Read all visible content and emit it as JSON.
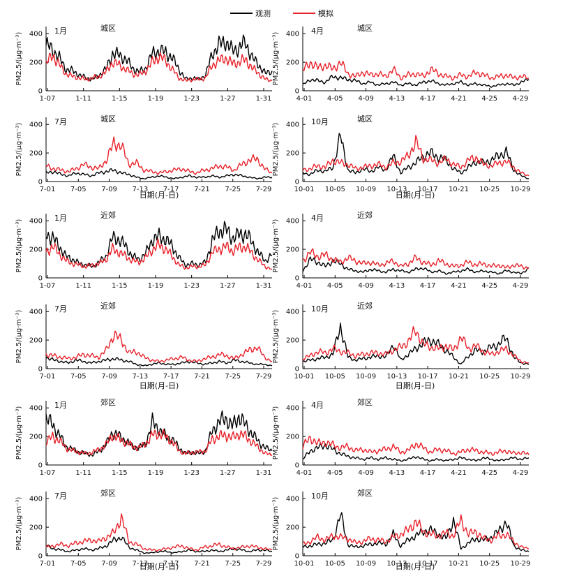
{
  "legend": {
    "observed": "观测",
    "simulated": "模拟",
    "observed_color": "#000000",
    "simulated_color": "#e8212a"
  },
  "y_axis_label": "PM2.5/(μg·m⁻³)",
  "x_axis_label": "日期(月-日)",
  "chart_data": [
    {
      "type": "line",
      "month": "1月",
      "region": "城区",
      "ylim": [
        0,
        450
      ],
      "yticks": [
        0,
        200,
        400
      ],
      "xticks": [
        "1-07",
        "1-11",
        "1-15",
        "1-19",
        "1-23",
        "1-27",
        "1-31"
      ],
      "series": [
        {
          "name": "观测",
          "values": [
            320,
            290,
            230,
            150,
            140,
            110,
            90,
            80,
            110,
            150,
            260,
            250,
            220,
            160,
            130,
            160,
            260,
            280,
            270,
            230,
            150,
            80,
            90,
            80,
            110,
            260,
            320,
            350,
            280,
            300,
            340,
            230,
            180,
            120,
            140
          ]
        },
        {
          "name": "模拟",
          "values": [
            190,
            250,
            180,
            120,
            100,
            90,
            80,
            90,
            100,
            130,
            200,
            180,
            150,
            120,
            110,
            140,
            200,
            240,
            210,
            150,
            90,
            70,
            80,
            80,
            90,
            180,
            210,
            230,
            190,
            200,
            220,
            160,
            120,
            80,
            70
          ]
        }
      ]
    },
    {
      "type": "line",
      "month": "4月",
      "region": "城区",
      "ylim": [
        0,
        450
      ],
      "yticks": [
        0,
        200,
        400
      ],
      "xticks": [
        "4-01",
        "4-05",
        "4-09",
        "4-13",
        "4-17",
        "4-21",
        "4-25",
        "4-29"
      ],
      "series": [
        {
          "name": "观测",
          "values": [
            40,
            80,
            70,
            60,
            100,
            90,
            80,
            70,
            50,
            60,
            40,
            50,
            60,
            40,
            50,
            40,
            60,
            70,
            50,
            40,
            50,
            60,
            40,
            50,
            40,
            30,
            40,
            50,
            40,
            60,
            80
          ]
        },
        {
          "name": "模拟",
          "values": [
            140,
            200,
            160,
            180,
            150,
            200,
            120,
            100,
            130,
            110,
            120,
            100,
            150,
            90,
            110,
            120,
            100,
            150,
            120,
            100,
            90,
            110,
            100,
            130,
            110,
            90,
            100,
            110,
            90,
            100,
            90
          ]
        }
      ]
    },
    {
      "type": "line",
      "month": "7月",
      "region": "城区",
      "ylim": [
        0,
        450
      ],
      "yticks": [
        0,
        200,
        400
      ],
      "xticks": [
        "7-01",
        "7-05",
        "7-09",
        "7-13",
        "7-17",
        "7-21",
        "7-25",
        "7-29"
      ],
      "series": [
        {
          "name": "观测",
          "values": [
            60,
            70,
            50,
            40,
            60,
            50,
            40,
            60,
            70,
            80,
            60,
            50,
            30,
            20,
            30,
            40,
            30,
            20,
            30,
            40,
            30,
            30,
            40,
            30,
            40,
            50,
            40,
            30,
            20,
            30,
            30
          ]
        },
        {
          "name": "模拟",
          "values": [
            110,
            90,
            80,
            70,
            90,
            120,
            100,
            90,
            150,
            270,
            250,
            120,
            130,
            80,
            70,
            60,
            70,
            80,
            90,
            70,
            60,
            80,
            90,
            110,
            100,
            80,
            120,
            150,
            160,
            90,
            60
          ]
        }
      ]
    },
    {
      "type": "line",
      "month": "10月",
      "region": "城区",
      "ylim": [
        0,
        450
      ],
      "yticks": [
        0,
        200,
        400
      ],
      "xticks": [
        "10-01",
        "10-05",
        "10-09",
        "10-13",
        "10-17",
        "10-21",
        "10-25",
        "10-29"
      ],
      "series": [
        {
          "name": "观测",
          "values": [
            60,
            50,
            80,
            70,
            100,
            320,
            80,
            60,
            90,
            70,
            100,
            80,
            180,
            60,
            100,
            130,
            180,
            200,
            170,
            150,
            90,
            60,
            100,
            140,
            130,
            150,
            180,
            210,
            80,
            40,
            20
          ]
        },
        {
          "name": "模拟",
          "values": [
            80,
            90,
            110,
            100,
            150,
            130,
            120,
            90,
            100,
            110,
            120,
            100,
            130,
            140,
            180,
            280,
            160,
            150,
            130,
            160,
            120,
            100,
            150,
            170,
            120,
            110,
            130,
            140,
            100,
            60,
            40
          ]
        }
      ]
    },
    {
      "type": "line",
      "month": "1月",
      "region": "近郊",
      "ylim": [
        0,
        450
      ],
      "yticks": [
        0,
        200,
        400
      ],
      "xticks": [
        "1-07",
        "1-11",
        "1-15",
        "1-19",
        "1-23",
        "1-27",
        "1-31"
      ],
      "series": [
        {
          "name": "观测",
          "values": [
            310,
            280,
            220,
            150,
            130,
            100,
            90,
            80,
            110,
            150,
            280,
            270,
            220,
            150,
            130,
            170,
            270,
            290,
            270,
            220,
            140,
            90,
            100,
            90,
            110,
            260,
            330,
            340,
            280,
            300,
            310,
            250,
            170,
            120,
            160
          ]
        },
        {
          "name": "模拟",
          "values": [
            180,
            220,
            170,
            120,
            100,
            90,
            80,
            90,
            100,
            130,
            200,
            180,
            150,
            120,
            110,
            140,
            200,
            230,
            200,
            150,
            90,
            70,
            80,
            80,
            90,
            180,
            200,
            220,
            190,
            210,
            220,
            170,
            120,
            80,
            60
          ]
        }
      ]
    },
    {
      "type": "line",
      "month": "4月",
      "region": "近郊",
      "ylim": [
        0,
        450
      ],
      "yticks": [
        0,
        200,
        400
      ],
      "xticks": [
        "4-01",
        "4-05",
        "4-09",
        "4-13",
        "4-17",
        "4-21",
        "4-25",
        "4-29"
      ],
      "series": [
        {
          "name": "观测",
          "values": [
            50,
            130,
            110,
            80,
            120,
            100,
            60,
            50,
            40,
            60,
            50,
            40,
            60,
            50,
            40,
            60,
            70,
            40,
            50,
            30,
            40,
            50,
            60,
            40,
            50,
            40,
            30,
            50,
            40,
            30,
            70
          ]
        },
        {
          "name": "模拟",
          "values": [
            120,
            180,
            150,
            160,
            130,
            110,
            140,
            120,
            100,
            110,
            90,
            100,
            120,
            80,
            100,
            140,
            110,
            90,
            120,
            100,
            80,
            90,
            110,
            90,
            100,
            80,
            90,
            70,
            90,
            80,
            70
          ]
        }
      ]
    },
    {
      "type": "line",
      "month": "7月",
      "region": "近郊",
      "ylim": [
        0,
        450
      ],
      "yticks": [
        0,
        200,
        400
      ],
      "xticks": [
        "7-01",
        "7-05",
        "7-09",
        "7-13",
        "7-17",
        "7-21",
        "7-25",
        "7-29"
      ],
      "series": [
        {
          "name": "观测",
          "values": [
            80,
            60,
            50,
            40,
            60,
            50,
            40,
            50,
            60,
            70,
            60,
            50,
            30,
            20,
            30,
            40,
            30,
            30,
            40,
            50,
            40,
            30,
            40,
            50,
            40,
            60,
            50,
            40,
            30,
            30,
            20
          ]
        },
        {
          "name": "模拟",
          "values": [
            100,
            90,
            80,
            70,
            80,
            100,
            90,
            80,
            130,
            240,
            200,
            110,
            120,
            80,
            60,
            50,
            60,
            70,
            80,
            60,
            50,
            70,
            80,
            100,
            90,
            70,
            100,
            130,
            150,
            80,
            50
          ]
        }
      ]
    },
    {
      "type": "line",
      "month": "10月",
      "region": "近郊",
      "ylim": [
        0,
        450
      ],
      "yticks": [
        0,
        200,
        400
      ],
      "xticks": [
        "10-01",
        "10-05",
        "10-09",
        "10-13",
        "10-17",
        "10-21",
        "10-25",
        "10-29"
      ],
      "series": [
        {
          "name": "观测",
          "values": [
            50,
            60,
            70,
            80,
            100,
            300,
            80,
            60,
            70,
            80,
            90,
            80,
            170,
            60,
            100,
            140,
            180,
            200,
            170,
            130,
            80,
            30,
            90,
            130,
            120,
            150,
            170,
            220,
            80,
            40,
            30
          ]
        },
        {
          "name": "模拟",
          "values": [
            70,
            90,
            120,
            110,
            140,
            120,
            110,
            90,
            100,
            110,
            110,
            100,
            130,
            150,
            190,
            270,
            170,
            150,
            140,
            160,
            130,
            220,
            140,
            160,
            120,
            100,
            120,
            140,
            90,
            50,
            40
          ]
        }
      ]
    },
    {
      "type": "line",
      "month": "1月",
      "region": "郊区",
      "ylim": [
        0,
        450
      ],
      "yticks": [
        0,
        200,
        400
      ],
      "xticks": [
        "1-07",
        "1-11",
        "1-15",
        "1-19",
        "1-23",
        "1-27",
        "1-31"
      ],
      "series": [
        {
          "name": "观测",
          "values": [
            330,
            280,
            210,
            130,
            110,
            90,
            80,
            70,
            100,
            140,
            230,
            200,
            170,
            130,
            120,
            150,
            300,
            250,
            200,
            180,
            120,
            80,
            90,
            80,
            100,
            240,
            300,
            330,
            270,
            340,
            280,
            220,
            160,
            120,
            100
          ]
        },
        {
          "name": "模拟",
          "values": [
            160,
            200,
            170,
            120,
            100,
            90,
            80,
            90,
            110,
            140,
            210,
            180,
            160,
            130,
            120,
            150,
            210,
            220,
            200,
            160,
            100,
            80,
            90,
            90,
            100,
            180,
            200,
            210,
            190,
            220,
            200,
            160,
            120,
            80,
            70
          ]
        }
      ]
    },
    {
      "type": "line",
      "month": "4月",
      "region": "郊区",
      "ylim": [
        0,
        450
      ],
      "yticks": [
        0,
        200,
        400
      ],
      "xticks": [
        "4-01",
        "4-05",
        "4-09",
        "4-13",
        "4-17",
        "4-21",
        "4-25",
        "4-29"
      ],
      "series": [
        {
          "name": "观测",
          "values": [
            40,
            100,
            120,
            140,
            110,
            80,
            60,
            50,
            40,
            50,
            40,
            50,
            40,
            30,
            40,
            60,
            40,
            30,
            40,
            30,
            40,
            50,
            40,
            30,
            50,
            40,
            30,
            40,
            50,
            40,
            50
          ]
        },
        {
          "name": "模拟",
          "values": [
            130,
            190,
            150,
            160,
            140,
            120,
            130,
            100,
            110,
            90,
            100,
            110,
            130,
            90,
            100,
            150,
            120,
            90,
            110,
            100,
            80,
            90,
            110,
            100,
            90,
            80,
            90,
            100,
            80,
            90,
            70
          ]
        }
      ]
    },
    {
      "type": "line",
      "month": "7月",
      "region": "郊区",
      "ylim": [
        0,
        450
      ],
      "yticks": [
        0,
        200,
        400
      ],
      "xticks": [
        "7-01",
        "7-05",
        "7-09",
        "7-13",
        "7-17",
        "7-21",
        "7-25",
        "7-29"
      ],
      "series": [
        {
          "name": "观测",
          "values": [
            70,
            50,
            40,
            30,
            40,
            50,
            40,
            50,
            70,
            110,
            130,
            60,
            40,
            20,
            20,
            30,
            30,
            20,
            30,
            40,
            30,
            30,
            40,
            30,
            40,
            50,
            40,
            30,
            40,
            40,
            30
          ]
        },
        {
          "name": "模拟",
          "values": [
            60,
            70,
            80,
            70,
            90,
            100,
            110,
            100,
            130,
            160,
            270,
            100,
            80,
            50,
            40,
            40,
            50,
            60,
            70,
            50,
            40,
            60,
            70,
            80,
            60,
            50,
            60,
            70,
            60,
            50,
            40
          ]
        }
      ]
    },
    {
      "type": "line",
      "month": "10月",
      "region": "郊区",
      "ylim": [
        0,
        450
      ],
      "yticks": [
        0,
        200,
        400
      ],
      "xticks": [
        "10-01",
        "10-05",
        "10-09",
        "10-13",
        "10-17",
        "10-21",
        "10-25",
        "10-29"
      ],
      "series": [
        {
          "name": "观测",
          "values": [
            60,
            70,
            80,
            90,
            110,
            290,
            80,
            60,
            70,
            80,
            90,
            80,
            150,
            70,
            110,
            140,
            170,
            180,
            150,
            120,
            250,
            50,
            90,
            120,
            110,
            130,
            170,
            240,
            70,
            40,
            30
          ]
        },
        {
          "name": "模拟",
          "values": [
            80,
            100,
            130,
            110,
            140,
            130,
            120,
            90,
            100,
            120,
            110,
            100,
            130,
            150,
            180,
            240,
            170,
            150,
            140,
            160,
            140,
            250,
            150,
            170,
            120,
            110,
            140,
            150,
            100,
            60,
            50
          ]
        }
      ]
    }
  ]
}
